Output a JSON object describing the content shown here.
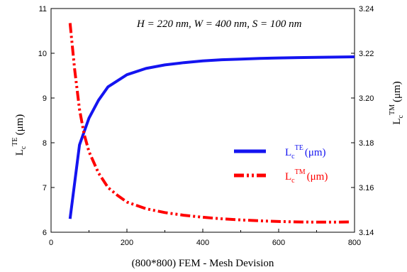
{
  "chart_data": {
    "type": "line",
    "annotation": "H = 220 nm, W = 400 nm, S = 100 nm",
    "xlabel": "(800*800) FEM - Mesh Devision",
    "ylabel_left": {
      "base": "L",
      "sub": "c",
      "sup": "TE",
      "unit": "(μm)"
    },
    "ylabel_right": {
      "base": "L",
      "sub": "c",
      "sup": "TM",
      "unit": "(μm)"
    },
    "xlim": [
      0,
      800
    ],
    "ylim_left": [
      6,
      11
    ],
    "ylim_right": [
      3.14,
      3.24
    ],
    "x_ticks": [
      "0",
      "200",
      "400",
      "600",
      "800"
    ],
    "y_left_ticks": [
      "6",
      "7",
      "8",
      "9",
      "10",
      "11"
    ],
    "y_right_ticks": [
      "3.14",
      "3.16",
      "3.18",
      "3.20",
      "3.22",
      "3.24"
    ],
    "legend_position": "center-right",
    "series": [
      {
        "name": "TE",
        "legend": {
          "base": "L",
          "sub": "c",
          "sup": "TE",
          "unit": "(μm)"
        },
        "axis": "left",
        "color": "#1414f0",
        "style": "solid",
        "x": [
          50,
          75,
          100,
          125,
          150,
          200,
          250,
          300,
          350,
          400,
          450,
          500,
          550,
          600,
          650,
          700,
          750,
          800
        ],
        "y": [
          6.3,
          7.95,
          8.55,
          8.95,
          9.25,
          9.52,
          9.66,
          9.74,
          9.79,
          9.83,
          9.855,
          9.87,
          9.885,
          9.895,
          9.903,
          9.91,
          9.915,
          9.92
        ]
      },
      {
        "name": "TM",
        "legend": {
          "base": "L",
          "sub": "c",
          "sup": "TM",
          "unit": "(μm)"
        },
        "axis": "right",
        "color": "#ff0000",
        "style": "dashdotdot",
        "x": [
          50,
          62,
          75,
          87,
          100,
          125,
          150,
          175,
          200,
          250,
          300,
          350,
          400,
          450,
          500,
          550,
          600,
          650,
          700,
          750,
          790
        ],
        "y": [
          3.2335,
          3.213,
          3.195,
          3.184,
          3.176,
          3.1665,
          3.16,
          3.1565,
          3.1535,
          3.1505,
          3.1488,
          3.1476,
          3.1467,
          3.146,
          3.1455,
          3.1451,
          3.1448,
          3.1446,
          3.1445,
          3.1445,
          3.1446
        ]
      }
    ]
  }
}
